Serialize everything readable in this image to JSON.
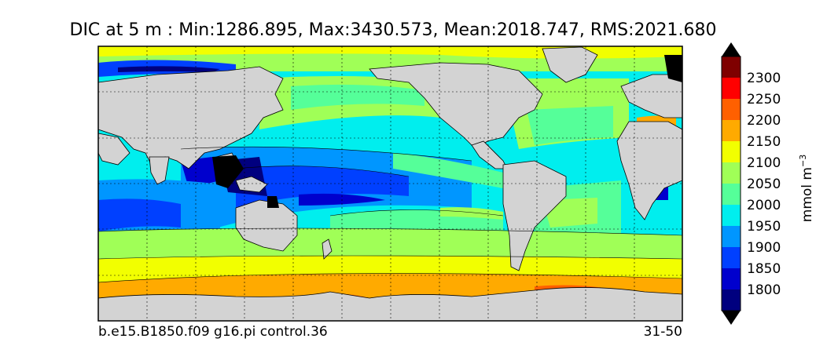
{
  "title": {
    "variable": "DIC",
    "depth": "5 m",
    "min": "1286.895",
    "max": "3430.573",
    "mean": "2018.747",
    "rms": "2021.680"
  },
  "footer": {
    "case_name": "b.e15.B1850.f09 g16.pi control.36",
    "years": "31-50"
  },
  "colorbar": {
    "unit_base": "mmol m",
    "unit_exponent": "−3",
    "levels": [
      "1800",
      "1850",
      "1900",
      "1950",
      "2000",
      "2050",
      "2100",
      "2150",
      "2200",
      "2250",
      "2300"
    ],
    "colors": [
      "#00007f",
      "#0000cd",
      "#0040ff",
      "#0096ff",
      "#00eeee",
      "#55ff99",
      "#a0ff57",
      "#f2ff00",
      "#ffaa00",
      "#ff6000",
      "#ff0000",
      "#7f0000"
    ],
    "land_color": "#d3d3d3"
  }
}
